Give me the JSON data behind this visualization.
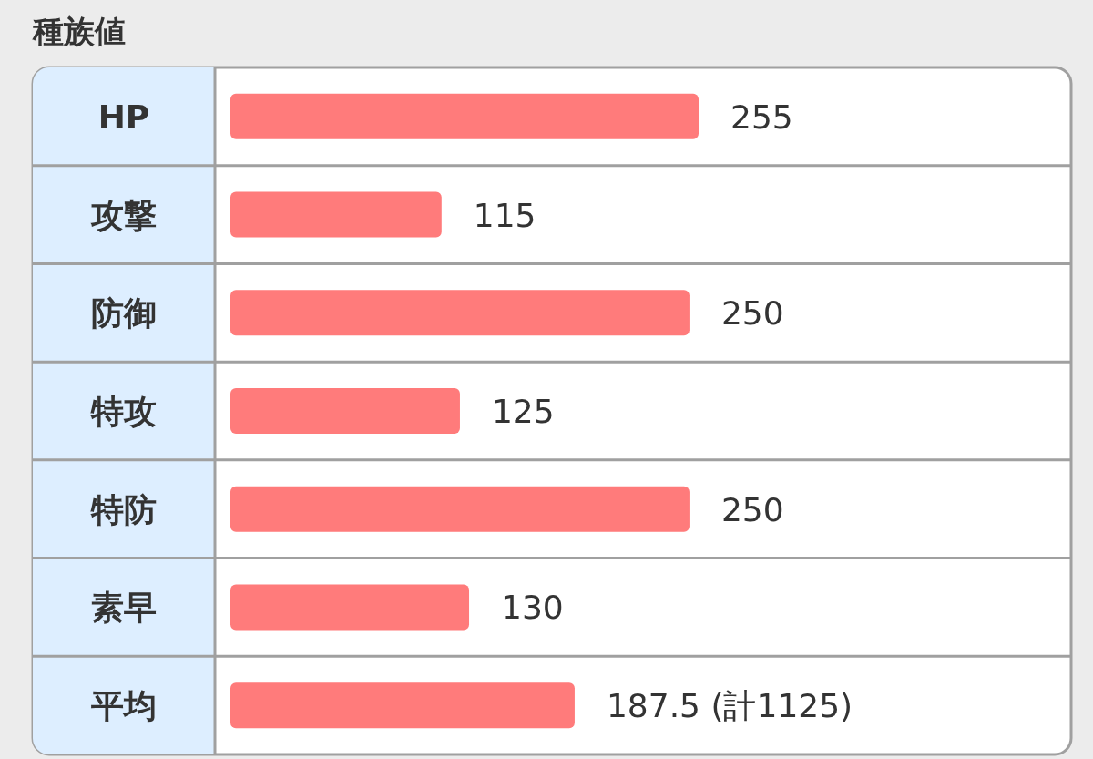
{
  "chart_data": {
    "type": "bar",
    "orientation": "horizontal",
    "title": "種族値",
    "categories": [
      "HP",
      "攻撃",
      "防御",
      "特攻",
      "特防",
      "素早",
      "平均"
    ],
    "values": [
      255,
      115,
      250,
      125,
      250,
      130,
      187.5
    ],
    "value_labels": [
      "255",
      "115",
      "250",
      "125",
      "250",
      "130",
      "187.5 (計1125)"
    ],
    "color": "#ff7b7b"
  }
}
